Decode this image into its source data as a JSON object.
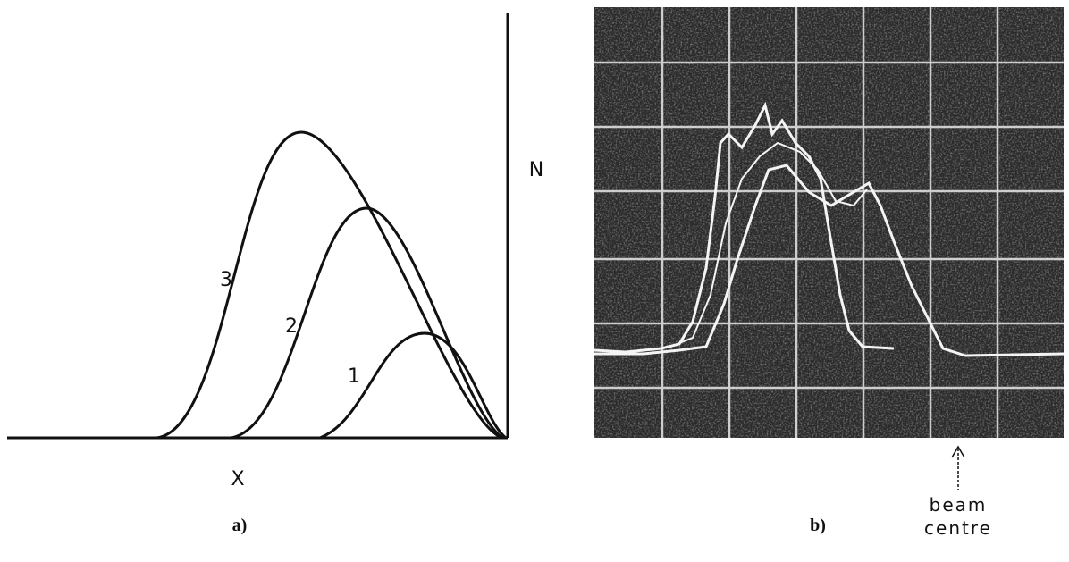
{
  "panel_a": {
    "y_axis_label": "N",
    "x_axis_label": "X",
    "curve_labels": [
      "3",
      "2",
      "1"
    ],
    "caption": "a)"
  },
  "panel_b": {
    "caption": "b)",
    "annotation": [
      "beam",
      "centre"
    ]
  }
}
